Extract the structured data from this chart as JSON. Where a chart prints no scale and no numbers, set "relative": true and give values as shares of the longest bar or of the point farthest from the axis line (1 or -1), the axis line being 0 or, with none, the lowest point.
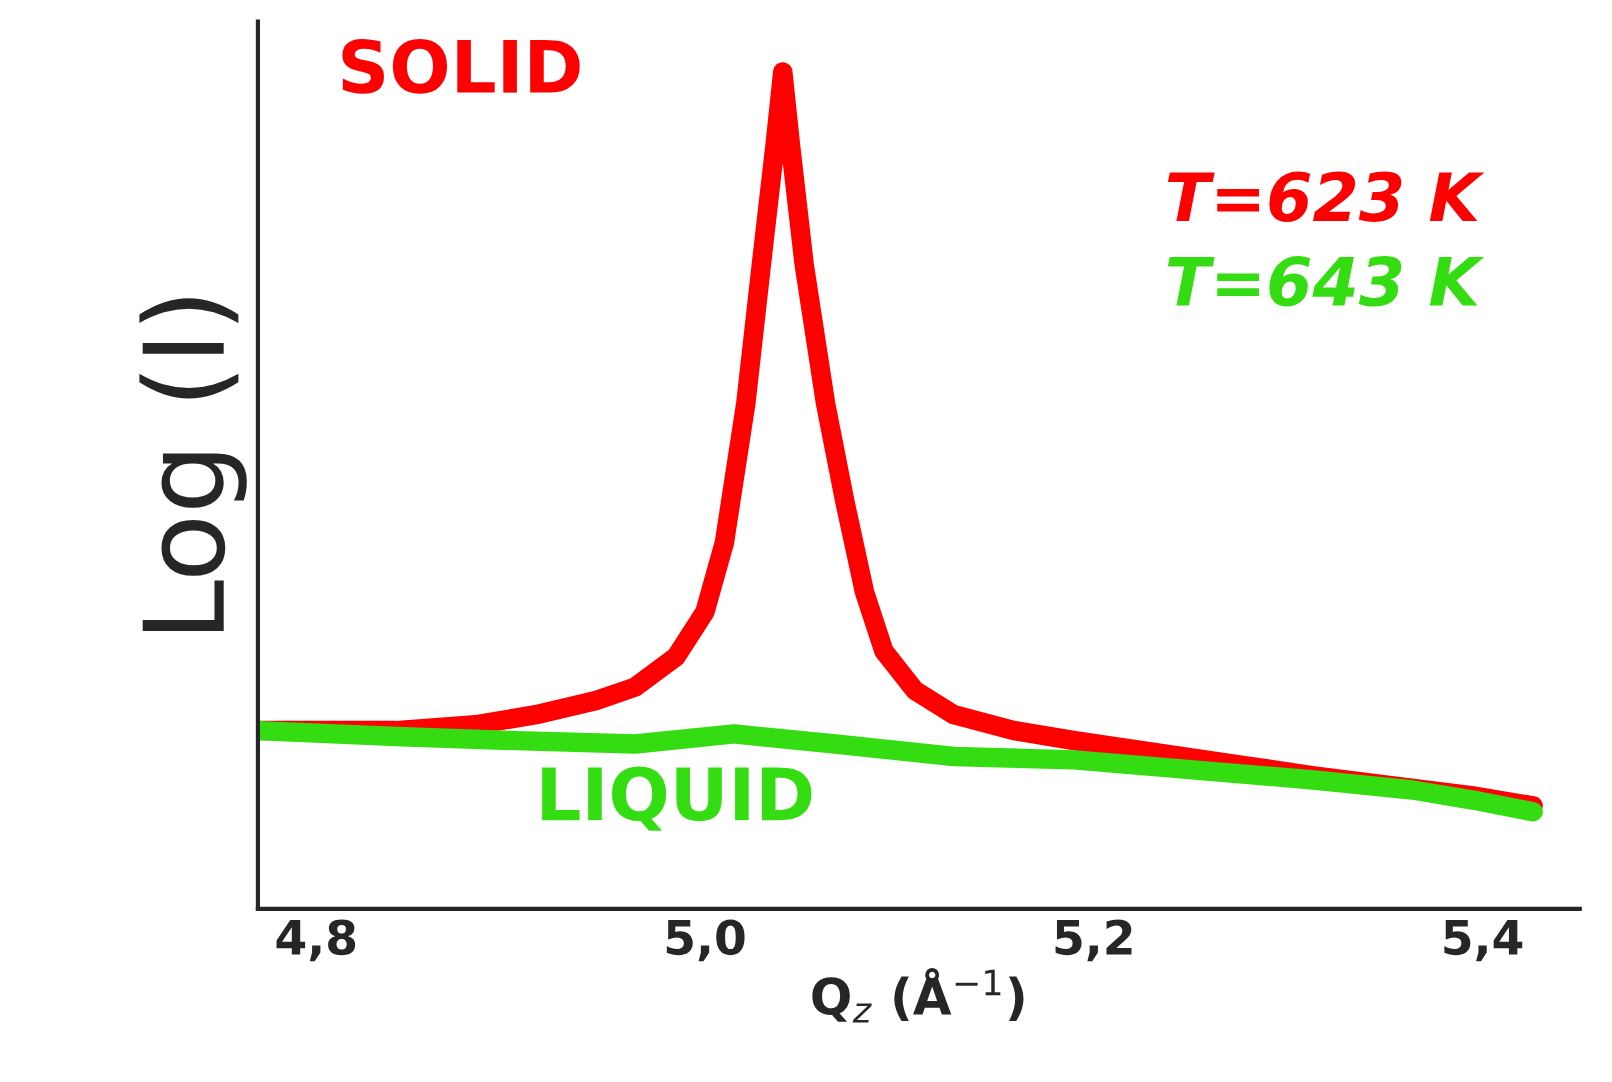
{
  "chart_data": {
    "type": "line",
    "relative": true,
    "xlabel": "Q$_{z}$ (Å$^{−1}$)",
    "ylabel": "Log (I)",
    "xlim": [
      4.77,
      5.45
    ],
    "xticks": [
      {
        "value": 4.8,
        "label": "4,8"
      },
      {
        "value": 5.0,
        "label": "5,0"
      },
      {
        "value": 5.2,
        "label": "5,2"
      },
      {
        "value": 5.4,
        "label": "5,4"
      }
    ],
    "grid": false,
    "legend": "top right",
    "marker": "none",
    "line_style": "solid",
    "annotations": [
      "SOLID",
      "LIQUID"
    ],
    "series": [
      {
        "name": "T=623 K",
        "color": "#ff0000",
        "x": [
          4.77,
          4.8,
          4.841,
          4.882,
          4.913,
          4.944,
          4.964,
          4.985,
          5.0,
          5.01,
          5.021,
          5.029,
          5.036,
          5.04,
          5.044,
          5.051,
          5.062,
          5.072,
          5.082,
          5.092,
          5.108,
          5.128,
          5.159,
          5.19,
          5.231,
          5.272,
          5.313,
          5.354,
          5.395,
          5.426
        ],
        "values": [
          0.213,
          0.213,
          0.213,
          0.22,
          0.232,
          0.249,
          0.265,
          0.301,
          0.355,
          0.438,
          0.604,
          0.77,
          0.912,
          1,
          0.912,
          0.77,
          0.604,
          0.486,
          0.379,
          0.308,
          0.261,
          0.232,
          0.213,
          0.201,
          0.187,
          0.173,
          0.159,
          0.147,
          0.135,
          0.123
        ]
      },
      {
        "name": "T=643 K",
        "color": "#33dd11",
        "x": [
          4.77,
          4.841,
          4.903,
          4.964,
          5.015,
          5.067,
          5.128,
          5.19,
          5.251,
          5.313,
          5.364,
          5.395,
          5.426
        ],
        "values": [
          0.213,
          0.206,
          0.201,
          0.197,
          0.209,
          0.197,
          0.182,
          0.178,
          0.166,
          0.154,
          0.142,
          0.13,
          0.116
        ]
      }
    ]
  }
}
